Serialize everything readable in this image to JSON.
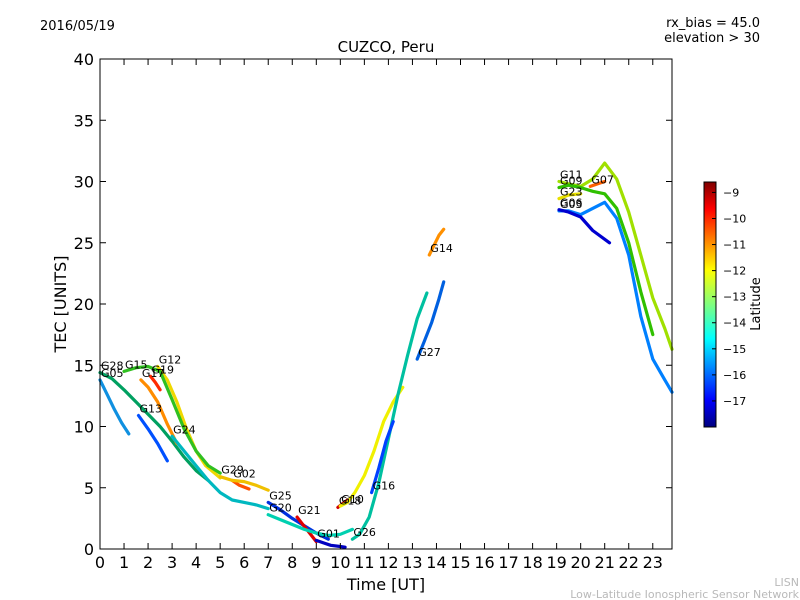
{
  "header": {
    "date": "2016/05/19",
    "rx_bias": "rx_bias = 45.0",
    "elevation": "elevation > 30"
  },
  "footer": {
    "line1": "LISN",
    "line2": "Low-Latitude Ionospheric Sensor Network"
  },
  "chart_data": {
    "type": "line",
    "title": "CUZCO, Peru",
    "xlabel": "Time [UT]",
    "ylabel": "TEC [UNITS]",
    "xlim": [
      0,
      23.8
    ],
    "ylim": [
      0,
      40
    ],
    "xticks": [
      0,
      1,
      2,
      3,
      4,
      5,
      6,
      7,
      8,
      9,
      10,
      11,
      12,
      13,
      14,
      15,
      16,
      17,
      18,
      19,
      20,
      21,
      22,
      23
    ],
    "yticks": [
      0,
      5,
      10,
      15,
      20,
      25,
      30,
      35,
      40
    ],
    "grid": false,
    "colorbar": {
      "label": "Latitude",
      "range": [
        -18,
        -8.6
      ],
      "ticks": [
        -9,
        -10,
        -11,
        -12,
        -13,
        -14,
        -15,
        -16,
        -17
      ],
      "colormap": "jet"
    },
    "series": [
      {
        "name": "G28",
        "color": "#00a060",
        "x": [
          0.0,
          0.5,
          1.0,
          1.5,
          2.0,
          2.5,
          3.0,
          3.5,
          4.0,
          4.5
        ],
        "y": [
          14.4,
          13.9,
          13.0,
          12.0,
          11.0,
          10.0,
          8.8,
          7.5,
          6.4,
          5.6
        ]
      },
      {
        "name": "G05",
        "color": "#1090e0",
        "x": [
          0.0,
          0.3,
          0.6,
          0.9,
          1.2
        ],
        "y": [
          13.8,
          12.6,
          11.4,
          10.3,
          9.4
        ]
      },
      {
        "name": "G17",
        "color": "#ff8c00",
        "x": [
          1.7,
          2.0,
          2.4,
          2.8,
          3.2
        ],
        "y": [
          13.8,
          13.2,
          12.0,
          10.2,
          8.6
        ]
      },
      {
        "name": "G19",
        "color": "#ff2a00",
        "x": [
          2.1,
          2.3,
          2.5
        ],
        "y": [
          14.1,
          13.6,
          13.0
        ]
      },
      {
        "name": "G12",
        "color": "#f0d800",
        "x": [
          2.4,
          2.8,
          3.2,
          3.6,
          4.0,
          4.4,
          5.0
        ],
        "y": [
          14.9,
          13.8,
          12.0,
          9.8,
          8.0,
          6.8,
          5.8
        ]
      },
      {
        "name": "G13",
        "color": "#0050ff",
        "x": [
          1.6,
          2.0,
          2.4,
          2.8
        ],
        "y": [
          10.9,
          9.8,
          8.6,
          7.2
        ]
      },
      {
        "name": "G15",
        "color": "#30c020",
        "x": [
          1.0,
          1.5,
          2.0,
          2.5,
          3.0,
          3.5,
          4.0,
          4.5,
          5.0
        ],
        "y": [
          14.5,
          14.8,
          14.9,
          14.5,
          12.2,
          9.8,
          8.0,
          6.8,
          6.2
        ]
      },
      {
        "name": "G24",
        "color": "#00b8c0",
        "x": [
          3.0,
          3.5,
          4.0,
          4.5,
          5.0,
          5.5,
          6.0,
          6.5,
          7.0
        ],
        "y": [
          9.2,
          8.0,
          6.8,
          5.6,
          4.6,
          4.0,
          3.8,
          3.6,
          3.3
        ]
      },
      {
        "name": "G02",
        "color": "#ff5000",
        "x": [
          5.5,
          5.8,
          6.2
        ],
        "y": [
          5.6,
          5.2,
          4.9
        ]
      },
      {
        "name": "G29",
        "color": "#f0c000",
        "x": [
          5.0,
          5.5,
          6.0,
          6.5,
          7.0
        ],
        "y": [
          5.9,
          5.6,
          5.5,
          5.2,
          4.8
        ]
      },
      {
        "name": "G25",
        "color": "#0030e0",
        "x": [
          7.0,
          7.5,
          8.0,
          8.5,
          9.0,
          9.5
        ],
        "y": [
          3.8,
          3.2,
          2.5,
          1.9,
          1.3,
          0.8
        ]
      },
      {
        "name": "G21",
        "color": "#e00000",
        "x": [
          8.2,
          8.4,
          8.6,
          8.8,
          9.0
        ],
        "y": [
          2.6,
          2.1,
          1.6,
          1.1,
          0.6
        ]
      },
      {
        "name": "G20",
        "color": "#00d0b0",
        "x": [
          7.0,
          7.5,
          8.0,
          8.5,
          9.0,
          9.5,
          10.0,
          10.5
        ],
        "y": [
          2.8,
          2.4,
          2.0,
          1.6,
          1.3,
          1.1,
          1.2,
          1.6
        ]
      },
      {
        "name": "G01",
        "color": "#0000c0",
        "x": [
          9.0,
          9.3,
          9.6,
          10.0,
          10.2
        ],
        "y": [
          0.7,
          0.5,
          0.3,
          0.2,
          0.15
        ]
      },
      {
        "name": "G18",
        "color": "#d00000",
        "x": [
          9.9,
          10.1,
          10.3
        ],
        "y": [
          3.4,
          3.7,
          4.0
        ]
      },
      {
        "name": "G10",
        "color": "#f0f000",
        "x": [
          10.0,
          10.3,
          10.6,
          11.0,
          11.4,
          11.8,
          12.2,
          12.6
        ],
        "y": [
          3.5,
          3.8,
          4.6,
          6.0,
          8.0,
          10.4,
          12.0,
          13.2
        ]
      },
      {
        "name": "G26",
        "color": "#00c0a0",
        "x": [
          10.5,
          10.8,
          11.2,
          11.6,
          12.0,
          12.4,
          12.8,
          13.2,
          13.6
        ],
        "y": [
          0.8,
          1.2,
          2.6,
          5.4,
          9.0,
          12.6,
          15.8,
          18.8,
          20.9
        ]
      },
      {
        "name": "G16",
        "color": "#0040ff",
        "x": [
          11.3,
          11.6,
          11.9,
          12.2
        ],
        "y": [
          4.6,
          6.6,
          8.8,
          10.4
        ]
      },
      {
        "name": "G27",
        "color": "#0060e0",
        "x": [
          13.2,
          13.5,
          13.8,
          14.1,
          14.3
        ],
        "y": [
          15.5,
          17.0,
          18.5,
          20.4,
          21.8
        ]
      },
      {
        "name": "G14",
        "color": "#ff9000",
        "x": [
          13.7,
          13.9,
          14.1,
          14.3
        ],
        "y": [
          24.0,
          24.8,
          25.6,
          26.1
        ]
      },
      {
        "name": "G11",
        "color": "#a0e000",
        "x": [
          19.1,
          19.5,
          20.0,
          20.5,
          21.0,
          21.5,
          22.0,
          22.5,
          23.0,
          23.5,
          23.8
        ],
        "y": [
          30.0,
          29.8,
          29.6,
          30.2,
          31.5,
          30.2,
          27.5,
          24.0,
          20.5,
          18.0,
          16.3
        ]
      },
      {
        "name": "G09",
        "color": "#30c000",
        "x": [
          19.1,
          19.5,
          20.0,
          20.5,
          21.0,
          21.5,
          22.0,
          22.5,
          23.0
        ],
        "y": [
          29.5,
          29.7,
          29.5,
          29.2,
          29.0,
          27.8,
          25.0,
          21.0,
          17.5
        ]
      },
      {
        "name": "G07",
        "color": "#ff6000",
        "x": [
          20.4,
          20.7,
          21.0
        ],
        "y": [
          29.6,
          29.8,
          30.0
        ]
      },
      {
        "name": "G23",
        "color": "#e8e000",
        "x": [
          19.1,
          19.5,
          20.0
        ],
        "y": [
          28.6,
          28.9,
          29.0
        ]
      },
      {
        "name": "G03",
        "color": "#0080ff",
        "x": [
          19.1,
          19.5,
          20.0,
          20.5,
          21.0,
          21.5,
          22.0,
          22.5,
          23.0,
          23.5,
          23.8
        ],
        "y": [
          27.6,
          27.6,
          27.3,
          27.8,
          28.3,
          27.0,
          24.0,
          19.0,
          15.5,
          13.8,
          12.8
        ]
      },
      {
        "name": "G06",
        "color": "#0000d0",
        "x": [
          19.1,
          19.5,
          20.0,
          20.5,
          21.2
        ],
        "y": [
          27.7,
          27.5,
          27.1,
          26.0,
          25.0
        ]
      }
    ]
  }
}
